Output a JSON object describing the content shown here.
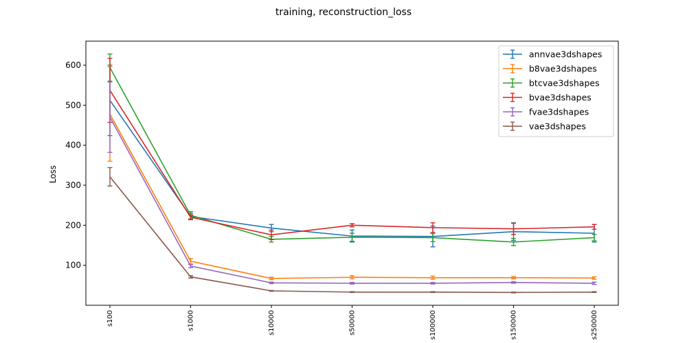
{
  "chart_data": {
    "type": "line",
    "title": "training, reconstruction_loss",
    "xlabel": "",
    "ylabel": "Loss",
    "categories": [
      "s100",
      "s1000",
      "s10000",
      "s50000",
      "s100000",
      "s150000",
      "s250000"
    ],
    "ylim": [
      0,
      660
    ],
    "yticks": [
      100,
      200,
      300,
      400,
      500,
      600
    ],
    "grid": false,
    "legend_position": "top-right",
    "error_bars": true,
    "series": [
      {
        "name": "annvae3dshapes",
        "color": "#1f77b4",
        "values": [
          512,
          222,
          193,
          173,
          172,
          184,
          180
        ],
        "errors": [
          88,
          8,
          9,
          15,
          26,
          22,
          22
        ]
      },
      {
        "name": "b8vae3dshapes",
        "color": "#ff7f0e",
        "values": [
          478,
          110,
          67,
          70,
          69,
          69,
          68
        ],
        "errors": [
          118,
          7,
          3,
          4,
          4,
          3,
          3
        ]
      },
      {
        "name": "btcvae3dshapes",
        "color": "#2ca02c",
        "values": [
          594,
          225,
          165,
          170,
          169,
          158,
          169
        ],
        "errors": [
          34,
          9,
          7,
          10,
          10,
          9,
          8
        ]
      },
      {
        "name": "bvae3dshapes",
        "color": "#d62728",
        "values": [
          537,
          220,
          176,
          200,
          194,
          191,
          196
        ],
        "errors": [
          80,
          6,
          12,
          4,
          12,
          14,
          6
        ]
      },
      {
        "name": "fvae3dshapes",
        "color": "#9467bd",
        "values": [
          470,
          98,
          56,
          55,
          55,
          57,
          55
        ],
        "errors": [
          88,
          4,
          2,
          2,
          2,
          2,
          3
        ]
      },
      {
        "name": "vae3dshapes",
        "color": "#8c564b",
        "values": [
          321,
          71,
          36,
          33,
          33,
          32,
          33
        ],
        "errors": [
          23,
          3,
          1,
          1,
          1,
          1,
          1
        ]
      }
    ]
  }
}
